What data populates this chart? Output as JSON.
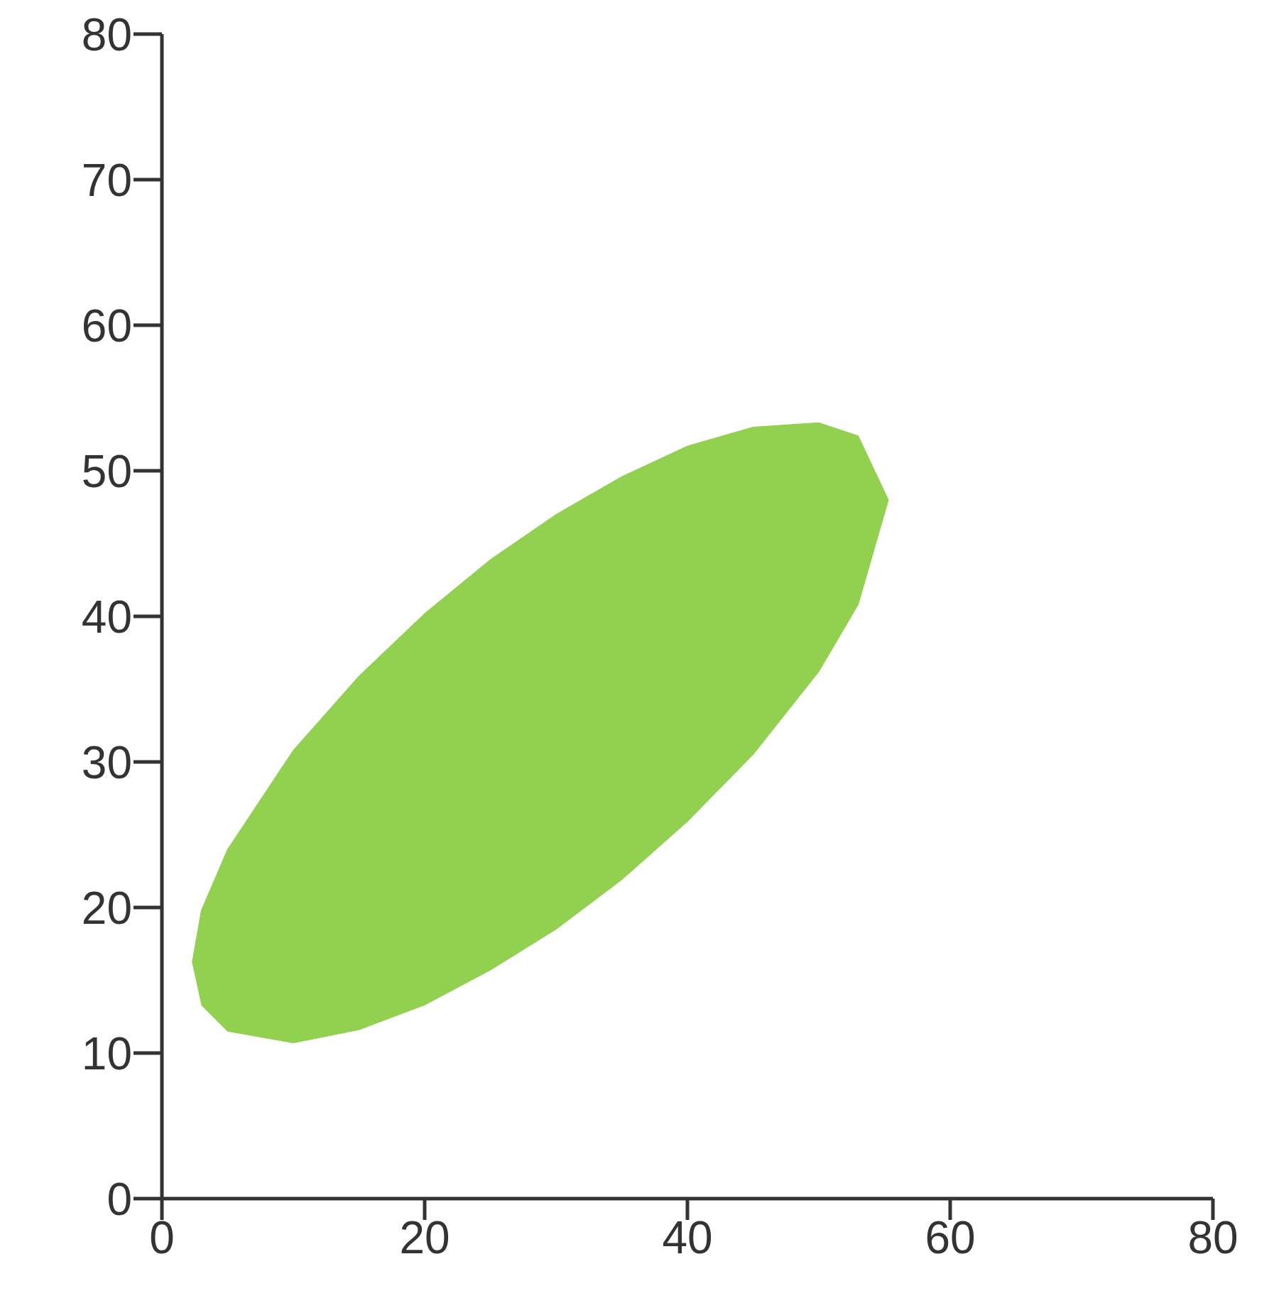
{
  "chart_data": {
    "type": "area",
    "xlim": [
      0,
      80
    ],
    "xticks": [
      0,
      20,
      40,
      60,
      80
    ],
    "ylim": [
      0,
      80
    ],
    "yticks": [
      0,
      10,
      20,
      30,
      40,
      50,
      60,
      70,
      80
    ],
    "grid": false,
    "legend": false,
    "series": [
      {
        "color": "#92d050",
        "x": [
          2.3,
          3,
          5,
          10,
          15,
          20,
          25,
          30,
          35,
          40,
          45,
          50,
          53,
          55.3,
          53,
          50,
          45,
          40,
          35,
          30,
          25,
          20,
          15,
          10,
          5,
          3
        ],
        "values": [
          16.2,
          19.8,
          24.0,
          30.8,
          35.9,
          40.2,
          43.9,
          47.0,
          49.6,
          51.7,
          53.0,
          53.3,
          52.4,
          48,
          40.8,
          36.2,
          30.5,
          25.9,
          21.9,
          18.5,
          15.7,
          13.3,
          11.6,
          10.7,
          11.5,
          13.3
        ]
      }
    ]
  }
}
